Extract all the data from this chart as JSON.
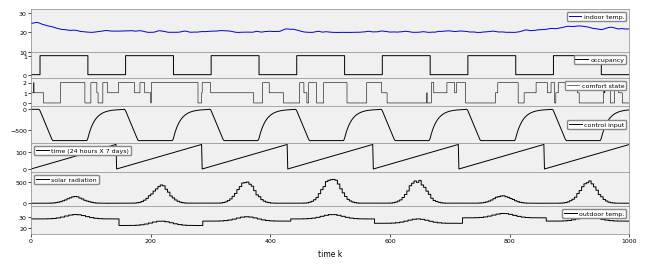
{
  "n_steps": 1000,
  "xlabel": "time k",
  "subplot_labels": [
    "indoor temp.",
    "occupancy",
    "comfort state",
    "control input",
    "time (24 hours X 7 days)",
    "solar radiation",
    "outdoor temp."
  ],
  "indoor_temp_ylim": [
    10,
    32
  ],
  "indoor_temp_yticks": [
    10,
    20,
    30
  ],
  "indoor_temp_color": "#0000cc",
  "occupancy_ylim": [
    -0.15,
    1.2
  ],
  "occupancy_yticks": [
    0,
    1
  ],
  "comfort_ylim": [
    -0.3,
    2.5
  ],
  "comfort_yticks": [
    0,
    1,
    2
  ],
  "control_ylim": [
    -820,
    80
  ],
  "control_yticks": [
    -500,
    0
  ],
  "time_ylim": [
    -15,
    150
  ],
  "time_yticks": [
    0,
    100
  ],
  "solar_ylim": [
    -60,
    750
  ],
  "solar_yticks": [
    0,
    500
  ],
  "outdoor_ylim": [
    14,
    40
  ],
  "outdoor_yticks": [
    20,
    30
  ],
  "background_color": "#ffffff",
  "line_color": "#000000",
  "fig_facecolor": "#ffffff",
  "axes_facecolor": "#f0f0f0",
  "height_ratios": [
    1.5,
    0.9,
    1.0,
    1.3,
    1.0,
    1.2,
    1.0
  ]
}
